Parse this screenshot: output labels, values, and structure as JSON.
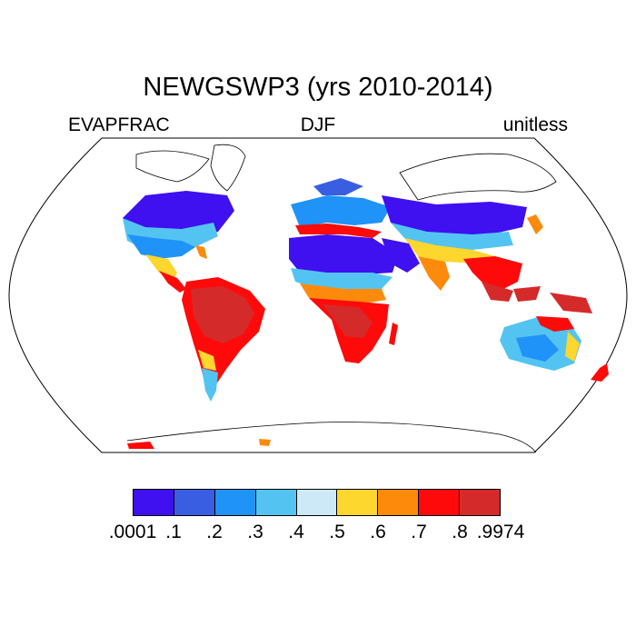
{
  "title": "NEWGSWP3 (yrs 2010-2014)",
  "left_label": "EVAPFRAC",
  "center_label": "DJF",
  "right_label": "unitless",
  "colorbar": {
    "colors": [
      "#3f10f0",
      "#3a5ee2",
      "#1f93f8",
      "#53c4f1",
      "#cde9f7",
      "#fdd62e",
      "#fe8a0c",
      "#fe0a0a",
      "#d52a2a"
    ],
    "tick_labels": [
      ".0001",
      ".1",
      ".2",
      ".3",
      ".4",
      ".5",
      ".6",
      ".7",
      ".8",
      ".9974"
    ]
  }
}
